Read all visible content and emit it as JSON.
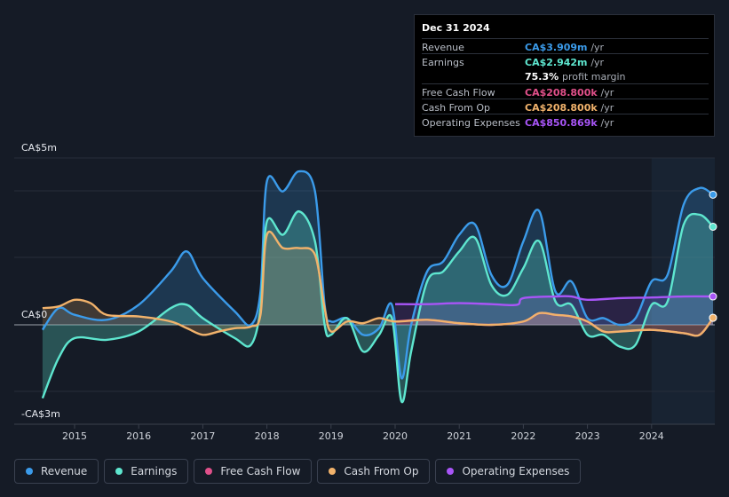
{
  "tooltip": {
    "date": "Dec 31 2024",
    "rows": [
      {
        "label": "Revenue",
        "value": "CA$3.909m",
        "unit": "/yr",
        "color": "#3b9bea"
      },
      {
        "label": "Earnings",
        "value": "CA$2.942m",
        "unit": "/yr",
        "color": "#5ee6cf"
      },
      {
        "label": "",
        "value": "75.3%",
        "unit": "profit margin",
        "color": "#ffffff"
      },
      {
        "label": "Free Cash Flow",
        "value": "CA$208.800k",
        "unit": "/yr",
        "color": "#e0508a"
      },
      {
        "label": "Cash From Op",
        "value": "CA$208.800k",
        "unit": "/yr",
        "color": "#f1b26b"
      },
      {
        "label": "Operating Expenses",
        "value": "CA$850.869k",
        "unit": "/yr",
        "color": "#a855f7"
      }
    ]
  },
  "legend": [
    {
      "label": "Revenue",
      "color": "#3b9bea"
    },
    {
      "label": "Earnings",
      "color": "#5ee6cf"
    },
    {
      "label": "Free Cash Flow",
      "color": "#e0508a"
    },
    {
      "label": "Cash From Op",
      "color": "#f1b26b"
    },
    {
      "label": "Operating Expenses",
      "color": "#a855f7"
    }
  ],
  "chart_data": {
    "type": "area",
    "title": "",
    "ylabel_top": "CA$5m",
    "ylabel_zero": "CA$0",
    "ylabel_bottom": "-CA$3m",
    "ylim": [
      -3,
      5
    ],
    "xlim": [
      2014.5,
      2025.0
    ],
    "highlight_start": 2024.0,
    "x_ticks": [
      2015,
      2016,
      2017,
      2018,
      2019,
      2020,
      2021,
      2022,
      2023,
      2024
    ],
    "x_tick_labels": [
      "2015",
      "2016",
      "2017",
      "2018",
      "2019",
      "2020",
      "2021",
      "2022",
      "2023",
      "2024"
    ],
    "series": [
      {
        "name": "Revenue",
        "color": "#3b9bea",
        "x": [
          2014.5,
          2014.75,
          2015.0,
          2015.5,
          2016.0,
          2016.5,
          2016.75,
          2017.0,
          2017.5,
          2017.75,
          2017.9,
          2018.0,
          2018.25,
          2018.5,
          2018.75,
          2018.9,
          2019.0,
          2019.25,
          2019.5,
          2019.75,
          2019.95,
          2020.1,
          2020.25,
          2020.5,
          2020.75,
          2021.0,
          2021.25,
          2021.5,
          2021.75,
          2022.0,
          2022.25,
          2022.5,
          2022.75,
          2023.0,
          2023.25,
          2023.5,
          2023.75,
          2024.0,
          2024.25,
          2024.5,
          2024.75,
          2025.0
        ],
        "values": [
          -0.15,
          0.5,
          0.3,
          0.15,
          0.6,
          1.6,
          2.2,
          1.4,
          0.4,
          0.0,
          1.0,
          4.3,
          4.0,
          4.6,
          4.0,
          0.6,
          0.1,
          0.2,
          -0.3,
          -0.1,
          0.6,
          -1.6,
          0.0,
          1.6,
          1.9,
          2.7,
          3.0,
          1.5,
          1.2,
          2.5,
          3.4,
          1.0,
          1.3,
          0.2,
          0.2,
          0.0,
          0.2,
          1.3,
          1.5,
          3.6,
          4.1,
          3.9
        ]
      },
      {
        "name": "Earnings",
        "color": "#5ee6cf",
        "x": [
          2014.5,
          2014.75,
          2015.0,
          2015.5,
          2016.0,
          2016.5,
          2016.75,
          2017.0,
          2017.5,
          2017.75,
          2017.9,
          2018.0,
          2018.25,
          2018.5,
          2018.75,
          2018.9,
          2019.0,
          2019.25,
          2019.5,
          2019.75,
          2019.95,
          2020.1,
          2020.25,
          2020.5,
          2020.75,
          2021.0,
          2021.25,
          2021.5,
          2021.75,
          2022.0,
          2022.25,
          2022.5,
          2022.75,
          2023.0,
          2023.25,
          2023.5,
          2023.75,
          2024.0,
          2024.25,
          2024.5,
          2024.75,
          2025.0
        ],
        "values": [
          -2.2,
          -1.0,
          -0.4,
          -0.45,
          -0.2,
          0.5,
          0.6,
          0.2,
          -0.4,
          -0.6,
          0.5,
          3.1,
          2.7,
          3.4,
          2.5,
          0.0,
          -0.3,
          0.2,
          -0.8,
          -0.3,
          0.2,
          -2.3,
          -0.8,
          1.3,
          1.6,
          2.2,
          2.6,
          1.2,
          0.9,
          1.7,
          2.5,
          0.7,
          0.6,
          -0.3,
          -0.3,
          -0.65,
          -0.6,
          0.6,
          0.7,
          3.0,
          3.3,
          2.94
        ]
      },
      {
        "name": "Free Cash Flow",
        "color": "#e0508a",
        "x": [
          2020.0,
          2020.5,
          2021.0,
          2021.5,
          2022.0,
          2022.25,
          2022.5,
          2022.75,
          2023.0,
          2023.25,
          2023.5,
          2024.0,
          2024.5,
          2024.75,
          2025.0
        ],
        "values": [
          0.1,
          0.15,
          0.05,
          0.0,
          0.1,
          0.35,
          0.3,
          0.25,
          0.1,
          -0.2,
          -0.2,
          -0.15,
          -0.25,
          -0.3,
          0.21
        ]
      },
      {
        "name": "Cash From Op",
        "color": "#f1b26b",
        "x": [
          2014.5,
          2014.75,
          2015.0,
          2015.25,
          2015.5,
          2016.0,
          2016.5,
          2016.75,
          2017.0,
          2017.25,
          2017.5,
          2017.75,
          2017.9,
          2018.0,
          2018.25,
          2018.5,
          2018.75,
          2018.9,
          2019.0,
          2019.25,
          2019.5,
          2019.75,
          2020.0,
          2020.5,
          2021.0,
          2021.5,
          2022.0,
          2022.25,
          2022.5,
          2022.75,
          2023.0,
          2023.25,
          2023.5,
          2024.0,
          2024.5,
          2024.75,
          2025.0
        ],
        "values": [
          0.5,
          0.55,
          0.75,
          0.65,
          0.3,
          0.25,
          0.1,
          -0.1,
          -0.3,
          -0.2,
          -0.1,
          -0.05,
          0.3,
          2.7,
          2.3,
          2.3,
          2.1,
          0.5,
          -0.2,
          0.1,
          0.05,
          0.2,
          0.1,
          0.15,
          0.05,
          0.0,
          0.1,
          0.35,
          0.3,
          0.25,
          0.1,
          -0.2,
          -0.2,
          -0.15,
          -0.25,
          -0.3,
          0.21
        ]
      },
      {
        "name": "Operating Expenses",
        "color": "#a855f7",
        "x": [
          2020.0,
          2020.5,
          2021.0,
          2021.5,
          2021.9,
          2022.0,
          2022.5,
          2022.75,
          2023.0,
          2023.5,
          2024.0,
          2024.5,
          2025.0
        ],
        "values": [
          0.62,
          0.62,
          0.65,
          0.62,
          0.6,
          0.8,
          0.85,
          0.85,
          0.75,
          0.8,
          0.82,
          0.85,
          0.85
        ]
      }
    ]
  }
}
